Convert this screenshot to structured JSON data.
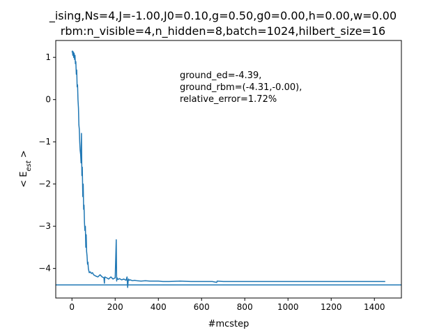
{
  "chart_data": {
    "type": "line",
    "title_line1": "_ising,Ns=4,J=-1.00,J0=0.10,g=0.50,g0=0.00,h=0.00,w=0.00",
    "title_line2": "rbm:n_visible=4,n_hidden=8,batch=1024,hilbert_size=16",
    "xlabel": "#mcstep",
    "ylabel": "< E_est >",
    "xlim": [
      -75,
      1525
    ],
    "ylim": [
      -4.7,
      1.4
    ],
    "xticks": [
      0,
      200,
      400,
      600,
      800,
      1000,
      1200,
      1400
    ],
    "yticks": [
      1,
      0,
      -1,
      -2,
      -3,
      -4
    ],
    "xtick_labels": [
      "0",
      "200",
      "400",
      "600",
      "800",
      "1000",
      "1200",
      "1400"
    ],
    "ytick_labels": [
      "1",
      "0",
      "−1",
      "−2",
      "−3",
      "−4"
    ],
    "annotation": [
      "ground_ed=-4.39,",
      "ground_rbm=(-4.31,-0.00),",
      "relative_error=1.72%"
    ],
    "reference_line_y": -4.39,
    "line_color": "#1f77b4",
    "grid": false,
    "series": [
      {
        "x": [
          0,
          2,
          4,
          6,
          8,
          10,
          12,
          14,
          16,
          18,
          20,
          22,
          24,
          26,
          28,
          30,
          32,
          34,
          36,
          38,
          40,
          42,
          44,
          46,
          48,
          50,
          52,
          54,
          56,
          58,
          60,
          62,
          64,
          66,
          68,
          70,
          72,
          74,
          76,
          78,
          80,
          85,
          90,
          95,
          100,
          110,
          120,
          130,
          140,
          148,
          150,
          152,
          160,
          170,
          180,
          190,
          200,
          205,
          207,
          209,
          211,
          213,
          220,
          230,
          240,
          250,
          255,
          258,
          260,
          262,
          265,
          270,
          280,
          290,
          300,
          320,
          340,
          360,
          380,
          400,
          420,
          450,
          500,
          550,
          600,
          650,
          670,
          672,
          700,
          750,
          800,
          850,
          900,
          950,
          1000,
          1050,
          1100,
          1150,
          1200,
          1250,
          1300,
          1350,
          1400,
          1450
        ],
        "y": [
          1.12,
          1.15,
          1.05,
          1.13,
          1.0,
          1.1,
          0.95,
          1.05,
          0.85,
          0.9,
          0.6,
          0.7,
          0.3,
          0.35,
          0.0,
          -0.2,
          -0.6,
          -0.7,
          -1.0,
          -1.2,
          -1.3,
          -1.5,
          -0.8,
          -1.8,
          -1.6,
          -2.3,
          -2.0,
          -2.6,
          -2.5,
          -2.9,
          -3.1,
          -3.0,
          -3.5,
          -3.2,
          -3.6,
          -3.7,
          -3.9,
          -3.85,
          -4.0,
          -4.05,
          -4.1,
          -4.08,
          -4.12,
          -4.1,
          -4.15,
          -4.18,
          -4.2,
          -4.15,
          -4.2,
          -4.22,
          -4.35,
          -4.2,
          -4.22,
          -4.25,
          -4.2,
          -4.25,
          -4.22,
          -3.32,
          -4.3,
          -4.22,
          -4.25,
          -4.26,
          -4.24,
          -4.27,
          -4.25,
          -4.28,
          -4.2,
          -4.45,
          -4.3,
          -4.25,
          -4.28,
          -4.27,
          -4.29,
          -4.28,
          -4.29,
          -4.3,
          -4.29,
          -4.3,
          -4.3,
          -4.3,
          -4.31,
          -4.31,
          -4.3,
          -4.31,
          -4.31,
          -4.31,
          -4.33,
          -4.3,
          -4.31,
          -4.31,
          -4.31,
          -4.31,
          -4.31,
          -4.31,
          -4.31,
          -4.31,
          -4.31,
          -4.31,
          -4.31,
          -4.31,
          -4.31,
          -4.31,
          -4.31,
          -4.31
        ]
      }
    ]
  }
}
